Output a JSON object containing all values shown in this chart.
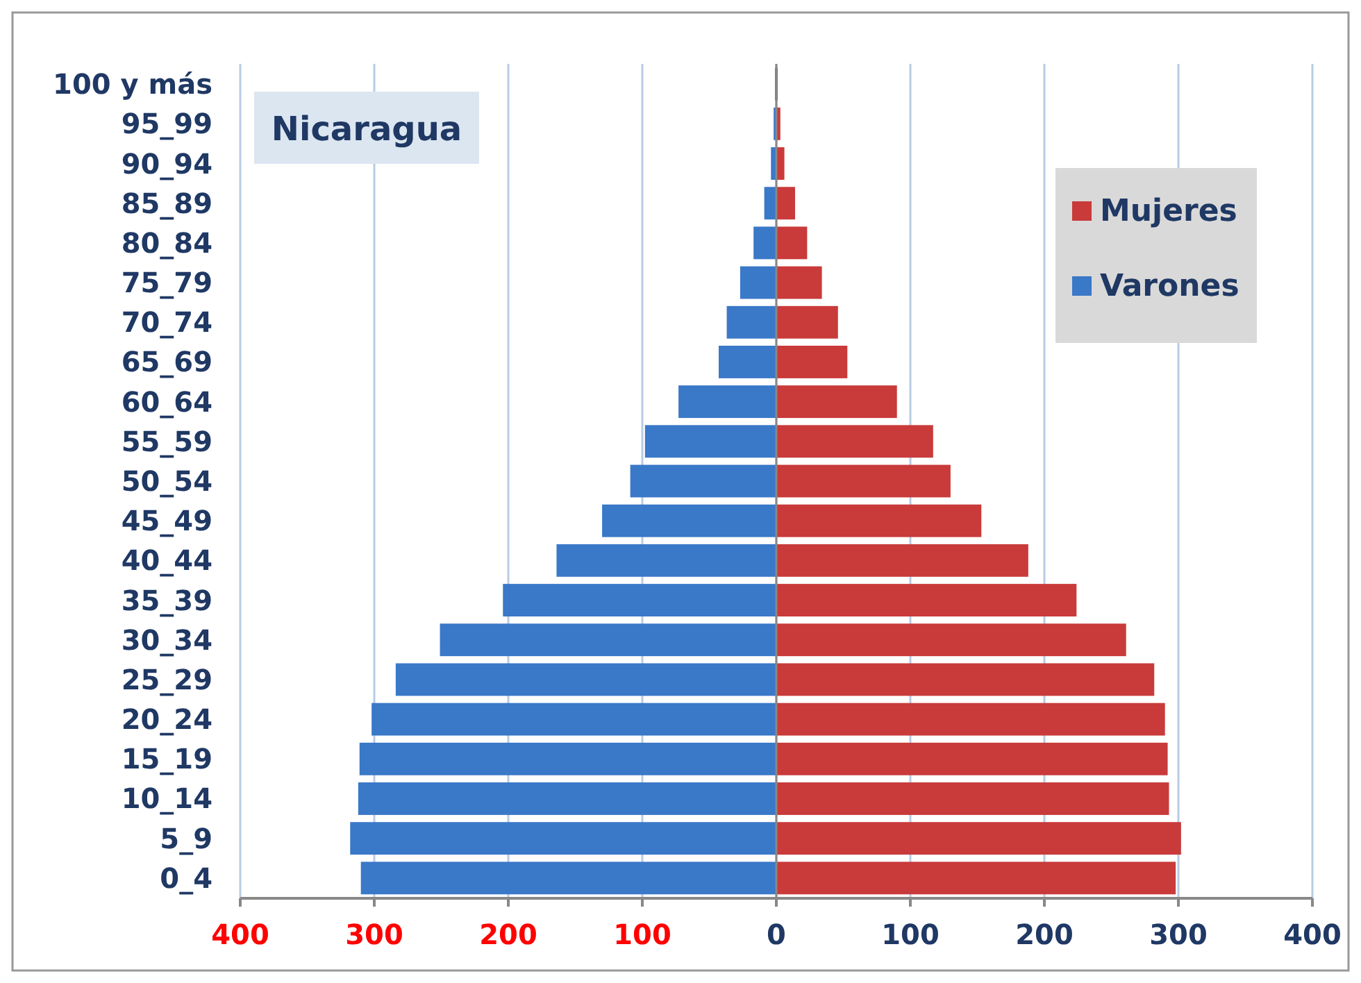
{
  "chart_data": {
    "type": "bar",
    "orientation": "horizontal",
    "title": "Nicaragua",
    "categories": [
      "100 y más",
      "95_99",
      "90_94",
      "85_89",
      "80_84",
      "75_79",
      "70_74",
      "65_69",
      "60_64",
      "55_59",
      "50_54",
      "45_49",
      "40_44",
      "35_39",
      "30_34",
      "25_29",
      "20_24",
      "15_19",
      "10_14",
      "5_9",
      "0_4"
    ],
    "series": [
      {
        "name": "Mujeres",
        "color": "#c93a3a",
        "values": [
          1,
          3,
          6,
          14,
          23,
          34,
          46,
          53,
          90,
          117,
          130,
          153,
          188,
          224,
          261,
          282,
          290,
          292,
          293,
          302,
          298
        ]
      },
      {
        "name": "Varones",
        "color": "#3a78c8",
        "values": [
          -1,
          -2,
          -4,
          -9,
          -17,
          -27,
          -37,
          -43,
          -73,
          -98,
          -109,
          -130,
          -164,
          -204,
          -251,
          -284,
          -302,
          -311,
          -312,
          -318,
          -310
        ]
      }
    ],
    "xlim": [
      -400,
      400
    ],
    "xticks": [
      {
        "value": -400,
        "label": "400"
      },
      {
        "value": -300,
        "label": "300"
      },
      {
        "value": -200,
        "label": "200"
      },
      {
        "value": -100,
        "label": "100"
      },
      0,
      100,
      200,
      300,
      400
    ],
    "grid": "x",
    "legend": "top right",
    "stacked": true
  }
}
